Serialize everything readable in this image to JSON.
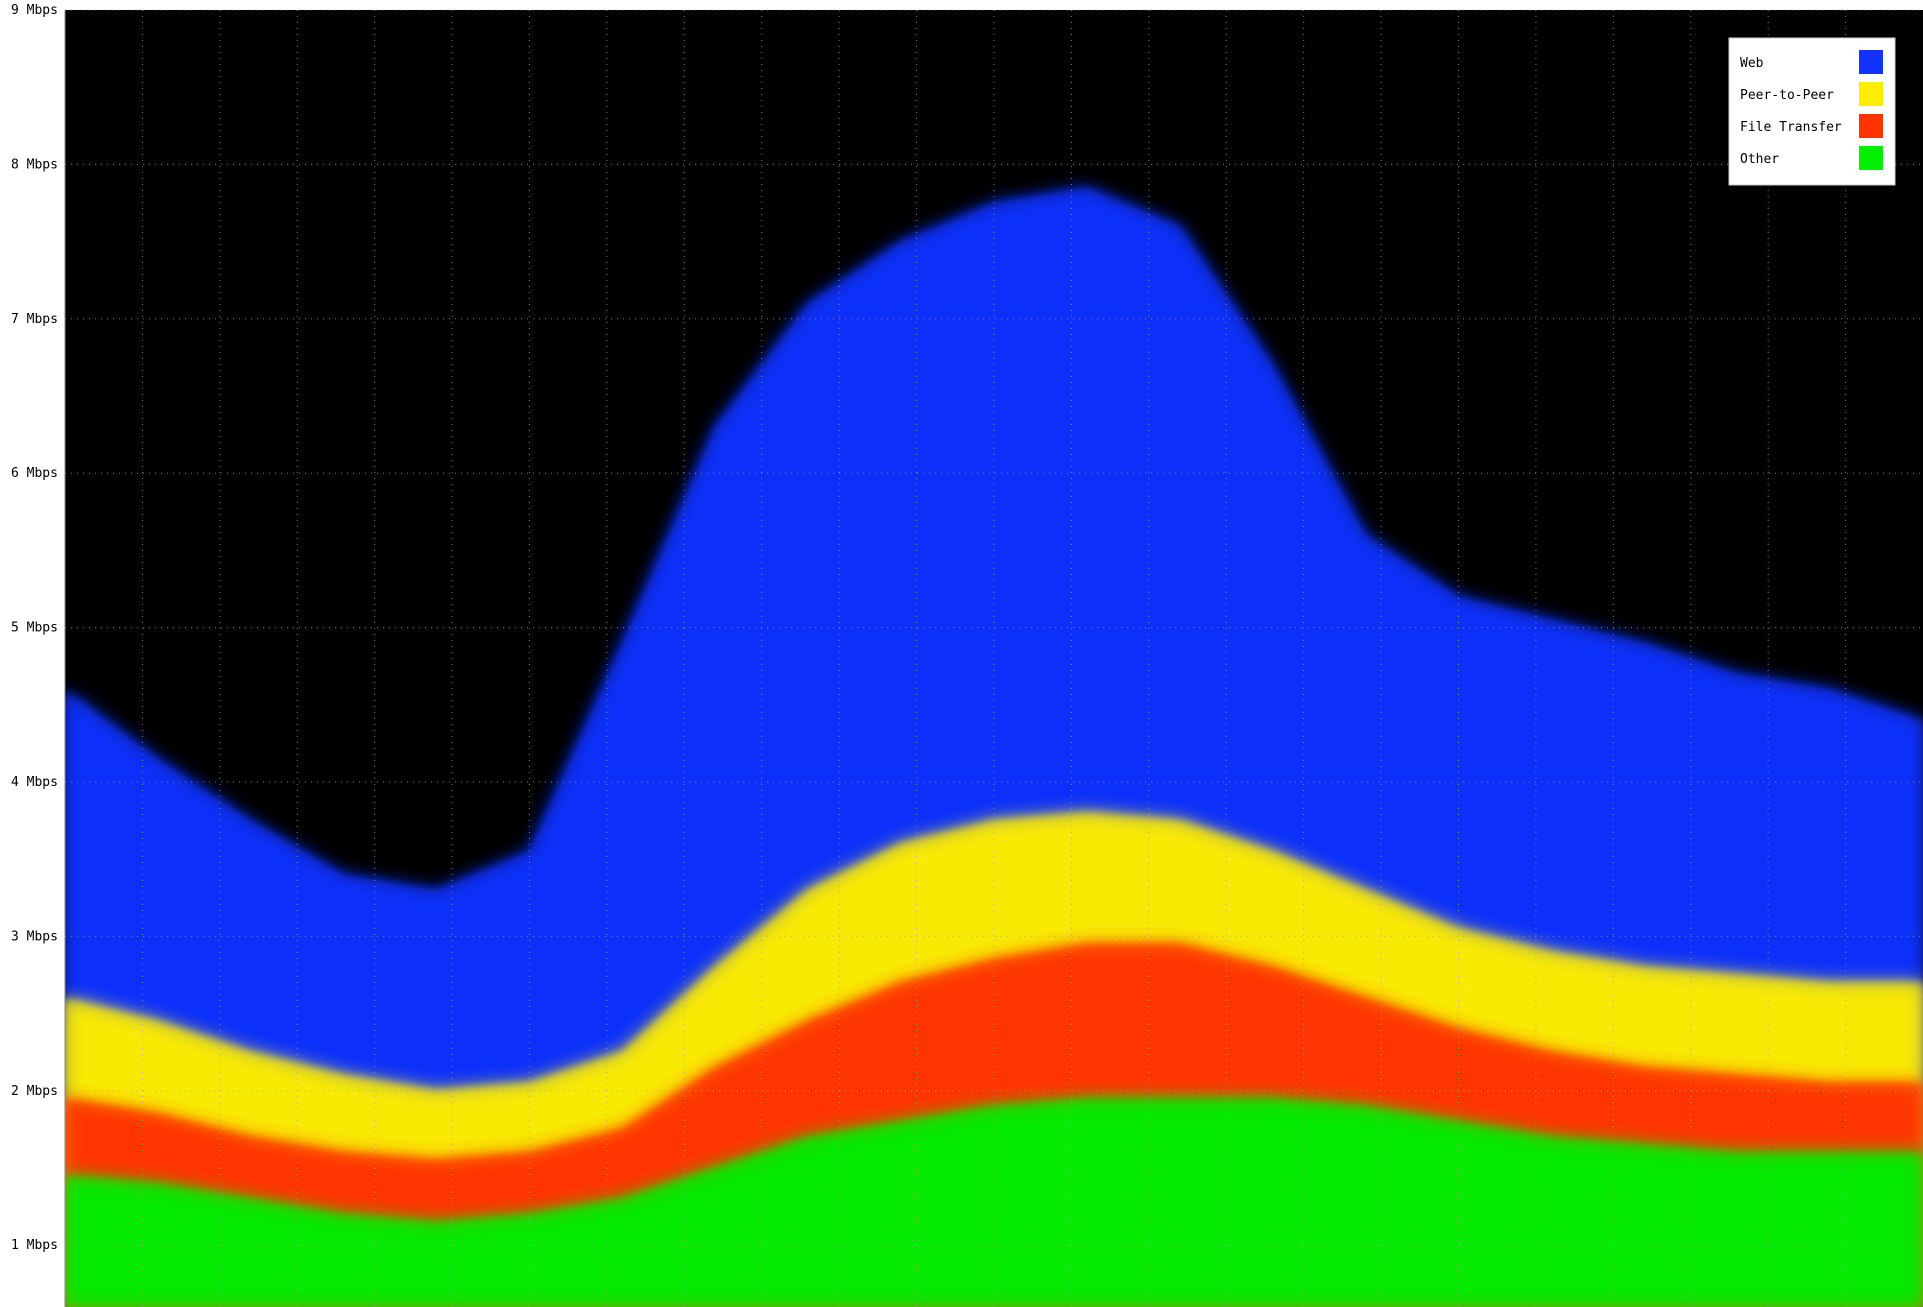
{
  "chart_data": {
    "type": "area",
    "title": "",
    "xlabel": "",
    "ylabel": "",
    "y_unit": "Mbps",
    "ylim": [
      0.6,
      9
    ],
    "grid": true,
    "legend_position": "top-right",
    "background": "#000000",
    "y_ticks": [
      {
        "value": 9,
        "label": "9 Mbps"
      },
      {
        "value": 8,
        "label": "8 Mbps"
      },
      {
        "value": 7,
        "label": "7 Mbps"
      },
      {
        "value": 6,
        "label": "6 Mbps"
      },
      {
        "value": 5,
        "label": "5 Mbps"
      },
      {
        "value": 4,
        "label": "4 Mbps"
      },
      {
        "value": 3,
        "label": "3 Mbps"
      },
      {
        "value": 2,
        "label": "2 Mbps"
      },
      {
        "value": 1,
        "label": "1 Mbps"
      }
    ],
    "x_positions": [
      0,
      0.05,
      0.1,
      0.15,
      0.2,
      0.25,
      0.3,
      0.35,
      0.4,
      0.45,
      0.5,
      0.55,
      0.6,
      0.65,
      0.7,
      0.75,
      0.8,
      0.85,
      0.9,
      0.95,
      1.0
    ],
    "series": [
      {
        "name": "Other",
        "color": "#00ee00",
        "values": [
          1.45,
          1.4,
          1.3,
          1.2,
          1.15,
          1.2,
          1.3,
          1.5,
          1.7,
          1.8,
          1.9,
          1.95,
          1.95,
          1.95,
          1.9,
          1.8,
          1.7,
          1.65,
          1.6,
          1.6,
          1.6
        ]
      },
      {
        "name": "File Transfer",
        "color": "#ff3300",
        "values": [
          1.95,
          1.85,
          1.7,
          1.6,
          1.55,
          1.6,
          1.75,
          2.15,
          2.45,
          2.7,
          2.85,
          2.95,
          2.95,
          2.8,
          2.6,
          2.4,
          2.25,
          2.15,
          2.1,
          2.05,
          2.05
        ]
      },
      {
        "name": "Peer-to-Peer",
        "color": "#ffee00",
        "values": [
          2.6,
          2.45,
          2.25,
          2.1,
          2.0,
          2.05,
          2.25,
          2.8,
          3.3,
          3.6,
          3.75,
          3.8,
          3.75,
          3.55,
          3.3,
          3.05,
          2.9,
          2.8,
          2.75,
          2.7,
          2.7
        ]
      },
      {
        "name": "Web",
        "color": "#1133ff",
        "values": [
          4.6,
          4.15,
          3.75,
          3.4,
          3.3,
          3.55,
          4.9,
          6.3,
          7.1,
          7.5,
          7.75,
          7.85,
          7.6,
          6.7,
          5.6,
          5.2,
          5.05,
          4.9,
          4.7,
          4.6,
          4.4
        ]
      }
    ],
    "legend": [
      {
        "label": "Web",
        "color": "#1133ff"
      },
      {
        "label": "Peer-to-Peer",
        "color": "#ffee00"
      },
      {
        "label": "File Transfer",
        "color": "#ff3300"
      },
      {
        "label": "Other",
        "color": "#00ee00"
      }
    ]
  }
}
